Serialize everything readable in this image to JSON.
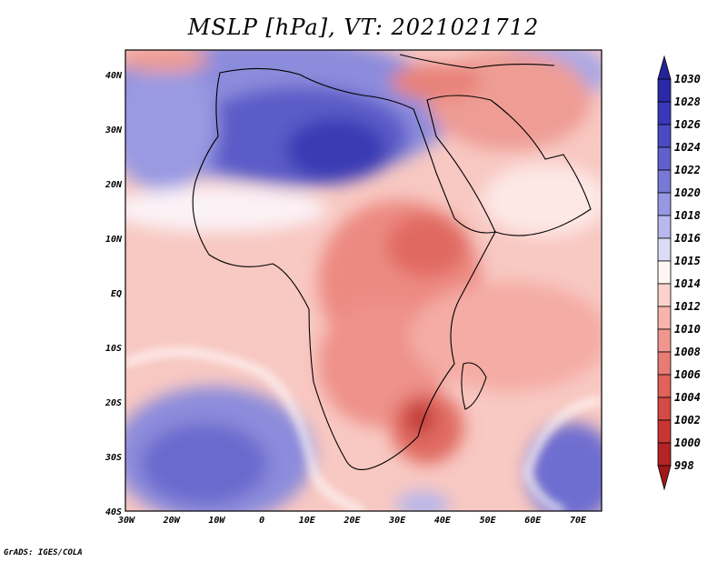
{
  "title": "MSLP [hPa], VT: 2021021712",
  "lat_labels": [
    "40N",
    "30N",
    "20N",
    "10N",
    "EQ",
    "10S",
    "20S",
    "30S",
    "40S"
  ],
  "lon_labels": [
    "30W",
    "20W",
    "10W",
    "0",
    "10E",
    "20E",
    "30E",
    "40E",
    "50E",
    "60E",
    "70E"
  ],
  "colorbar": {
    "levels": [
      "1030",
      "1028",
      "1026",
      "1024",
      "1022",
      "1020",
      "1018",
      "1016",
      "1015",
      "1014",
      "1012",
      "1010",
      "1008",
      "1006",
      "1004",
      "1002",
      "1000",
      "998"
    ],
    "colors": [
      "#24249a",
      "#2a2aa8",
      "#3838b8",
      "#4a4ac2",
      "#6060cc",
      "#7878d6",
      "#9898e2",
      "#b8b8ee",
      "#dcdcf6",
      "#fff6f4",
      "#fbd2cc",
      "#f6b4ac",
      "#f0968e",
      "#e87c74",
      "#e0625a",
      "#d44a44",
      "#c83634",
      "#b42424",
      "#a01818"
    ]
  },
  "credit": "GrADS: IGES/COLA"
}
